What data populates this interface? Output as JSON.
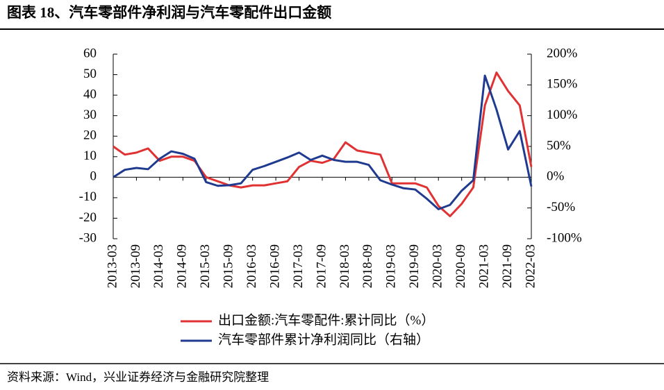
{
  "title": "图表 18、汽车零部件净利润与汽车零配件出口金额",
  "source": "资料来源：Wind，兴业证券经济与金融研究院整理",
  "chart_data": {
    "type": "line",
    "categories": [
      "2013-03",
      null,
      "2013-09",
      null,
      "2014-03",
      null,
      "2014-09",
      null,
      "2015-03",
      null,
      "2015-09",
      null,
      "2016-03",
      null,
      "2016-09",
      null,
      "2017-03",
      null,
      "2017-09",
      null,
      "2018-03",
      null,
      "2018-09",
      null,
      "2019-03",
      null,
      "2019-09",
      null,
      "2020-03",
      null,
      "2020-09",
      null,
      "2021-03",
      null,
      "2021-09",
      null,
      "2022-03"
    ],
    "series": [
      {
        "name": "出口金额:汽车零配件:累计同比（%）",
        "color": "#e03232",
        "values": [
          15,
          11,
          12,
          14,
          8,
          10,
          10,
          8,
          0,
          -2,
          -4,
          -5,
          -4,
          -4,
          -3,
          -2,
          5,
          8,
          7,
          9,
          17,
          13,
          12,
          11,
          -3,
          -3,
          -3,
          -5,
          -14,
          -19,
          -13,
          -5,
          35,
          51,
          42,
          35,
          5
        ]
      },
      {
        "name": "汽车零部件累计净利润同比（右轴）",
        "color": "#1f3a8f",
        "axis": "y2",
        "values": [
          0,
          12,
          15,
          13,
          30,
          42,
          38,
          30,
          -8,
          -14,
          -13,
          -10,
          12,
          18,
          25,
          32,
          40,
          28,
          35,
          28,
          25,
          25,
          20,
          -5,
          -12,
          -18,
          -20,
          -35,
          -52,
          -45,
          -22,
          -5,
          165,
          110,
          45,
          75,
          -15
        ]
      }
    ],
    "ylim": [
      -30,
      60
    ],
    "yticks": [
      -30,
      -20,
      -10,
      0,
      10,
      20,
      30,
      40,
      50,
      60
    ],
    "y2lim": [
      -100,
      200
    ],
    "y2ticks": [
      {
        "value": -100,
        "label": "-100%"
      },
      {
        "value": -50,
        "label": "-50%"
      },
      {
        "value": 0,
        "label": "0%"
      },
      {
        "value": 50,
        "label": "50%"
      },
      {
        "value": 100,
        "label": "100%"
      },
      {
        "value": 150,
        "label": "150%"
      },
      {
        "value": 200,
        "label": "200%"
      }
    ]
  }
}
